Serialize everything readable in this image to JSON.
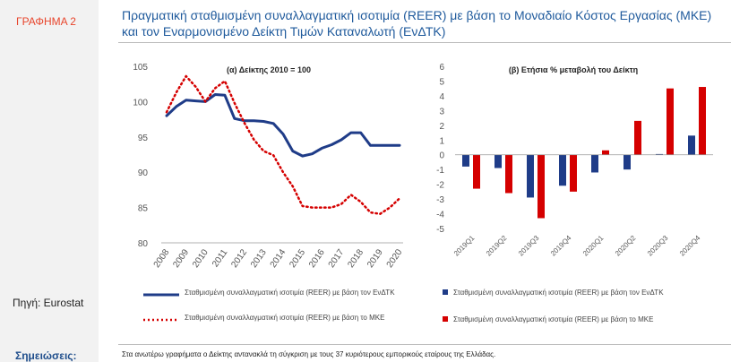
{
  "sidebar": {
    "figure_label": "ΓΡΑΦΗΜΑ 2",
    "source_label": "Πηγή: Eurostat",
    "notes_label": "Σημειώσεις:"
  },
  "title": "Πραγματική σταθμισμένη συναλλαγματική ισοτιμία (REER) με βάση το Μοναδιαίο Κόστος Εργασίας (ΜΚΕ) και τον Εναρμονισμένο Δείκτη Τιμών Καταναλωτή (ΕνΔΤΚ)",
  "note_text": "Στα ανωτέρω γραφήματα ο Δείκτης αντανακλά τη σύγκριση με τους 37 κυριότερους εμπορικούς εταίρους της Ελλάδας.",
  "colors": {
    "navy": "#1f3c88",
    "red": "#d50000"
  },
  "chart_data": [
    {
      "type": "line",
      "title": "(α) Δείκτης 2010 = 100",
      "categories": [
        "2008",
        "2009",
        "2010",
        "2011",
        "2012",
        "2013",
        "2014",
        "2015",
        "2016",
        "2017",
        "2018",
        "2019",
        "2020"
      ],
      "ylim": [
        80,
        105
      ],
      "yticks": [
        "80",
        "85",
        "90",
        "95",
        "100",
        "105"
      ],
      "series": [
        {
          "name": "Σταθμισμένη συναλλαγματική ισοτιμία (REER) με βάση τον ΕνΔΤΚ",
          "style": "solid",
          "color": "#1f3c88",
          "x": [
            0,
            0.5,
            1,
            1.5,
            2,
            2.5,
            3,
            3.5,
            4,
            4.5,
            5,
            5.5,
            6,
            6.5,
            7,
            7.5,
            8,
            8.5,
            9,
            9.5,
            10,
            10.5,
            11,
            11.5,
            12
          ],
          "values": [
            98.0,
            99.3,
            100.2,
            100.1,
            100.0,
            101.0,
            100.9,
            97.6,
            97.3,
            97.3,
            97.2,
            96.9,
            95.4,
            93.0,
            92.3,
            92.6,
            93.4,
            93.9,
            94.6,
            95.6,
            95.6,
            93.8,
            93.8,
            93.8,
            93.8
          ]
        },
        {
          "name": "Σταθμισμένη συναλλαγματική ισοτιμία (REER) με βάση το ΜΚΕ",
          "style": "dotted",
          "color": "#d50000",
          "x": [
            0,
            0.5,
            1,
            1.5,
            2,
            2.5,
            3,
            3.5,
            4,
            4.5,
            5,
            5.5,
            6,
            6.5,
            7,
            7.5,
            8,
            8.5,
            9,
            9.5,
            10,
            10.5,
            11,
            11.5,
            12
          ],
          "values": [
            98.5,
            101.3,
            103.6,
            102.1,
            100.0,
            101.9,
            102.9,
            99.8,
            97.0,
            94.6,
            93.0,
            92.4,
            90.0,
            88.0,
            85.2,
            85.0,
            85.0,
            85.0,
            85.5,
            86.8,
            85.8,
            84.3,
            84.1,
            85.0,
            86.3
          ]
        }
      ]
    },
    {
      "type": "bar",
      "title": "(β) Ετήσια % μεταβολή του Δείκτη",
      "categories": [
        "2019Q1",
        "2019Q2",
        "2019Q3",
        "2019Q4",
        "2020Q1",
        "2020Q2",
        "2020Q3",
        "2020Q4"
      ],
      "ylim": [
        -5,
        6
      ],
      "yticks": [
        "-5",
        "-4",
        "-3",
        "-2",
        "-1",
        "0",
        "1",
        "2",
        "3",
        "4",
        "5",
        "6"
      ],
      "series": [
        {
          "name": "Σταθμισμένη συναλλαγματική ισοτιμία (REER) με βάση τον ΕνΔΤΚ",
          "color": "#1f3c88",
          "values": [
            -0.8,
            -0.9,
            -2.9,
            -2.1,
            -1.2,
            -1.0,
            0.05,
            1.3
          ]
        },
        {
          "name": "Σταθμισμένη συναλλαγματική ισοτιμία (REER) με βάση το ΜΚΕ",
          "color": "#d50000",
          "values": [
            -2.3,
            -2.6,
            -4.3,
            -2.5,
            0.3,
            2.3,
            4.5,
            4.6
          ]
        }
      ]
    }
  ]
}
